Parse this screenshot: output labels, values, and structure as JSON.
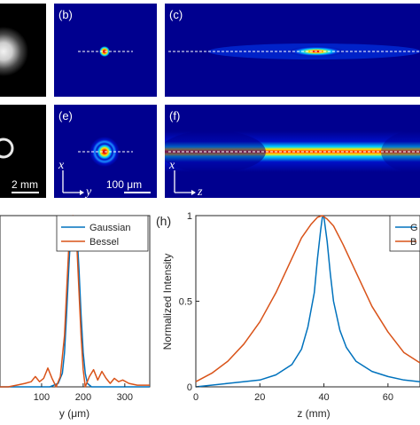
{
  "colors": {
    "blue": "#0072BD",
    "orange": "#D95319",
    "field": "#00008F",
    "dashed": "#ffffff",
    "hot": "#ff1a00",
    "warm": "#ffe600",
    "cool": "#00d4ff"
  },
  "panels": {
    "b": {
      "label": "(b)"
    },
    "c": {
      "label": "(c)"
    },
    "e": {
      "label": "(e)",
      "axis_x": "x",
      "axis_y": "y",
      "scale_text": "100 μm"
    },
    "f": {
      "label": "(f)",
      "axis_x": "x",
      "axis_z": "z"
    },
    "left": {
      "scale_text": "2 mm"
    },
    "h": {
      "label": "(h)"
    }
  },
  "chart_data": [
    {
      "type": "line",
      "panel": "g",
      "xlabel": "y (μm)",
      "ylabel": "",
      "xlim": [
        0,
        360
      ],
      "ylim": [
        0,
        1
      ],
      "x_ticks": [
        100,
        200,
        300
      ],
      "y_ticks": [],
      "legend": [
        "Gaussian",
        "Bessel"
      ],
      "legend_position": "top-right",
      "series": [
        {
          "name": "Gaussian",
          "color": "#0072BD",
          "x": [
            0,
            120,
            140,
            150,
            155,
            160,
            165,
            170,
            175,
            180,
            185,
            190,
            195,
            200,
            205,
            210,
            220,
            240,
            360
          ],
          "y": [
            0.0,
            0.0,
            0.02,
            0.08,
            0.2,
            0.42,
            0.68,
            0.9,
            0.99,
            0.99,
            0.9,
            0.68,
            0.42,
            0.2,
            0.08,
            0.02,
            0.0,
            0.0,
            0.0
          ]
        },
        {
          "name": "Bessel",
          "color": "#D95319",
          "x": [
            0,
            20,
            40,
            60,
            75,
            85,
            95,
            105,
            115,
            125,
            135,
            145,
            155,
            160,
            165,
            170,
            175,
            180,
            185,
            190,
            195,
            200,
            205,
            215,
            225,
            235,
            245,
            255,
            265,
            275,
            285,
            295,
            310,
            330,
            360
          ],
          "y": [
            0.0,
            0.0,
            0.01,
            0.02,
            0.03,
            0.06,
            0.03,
            0.05,
            0.11,
            0.05,
            0.0,
            0.06,
            0.3,
            0.55,
            0.8,
            0.95,
            1.0,
            0.97,
            0.82,
            0.55,
            0.3,
            0.1,
            0.0,
            0.06,
            0.1,
            0.04,
            0.09,
            0.05,
            0.02,
            0.05,
            0.03,
            0.04,
            0.02,
            0.01,
            0.01
          ]
        }
      ]
    },
    {
      "type": "line",
      "panel": "h",
      "xlabel": "z (mm)",
      "ylabel": "Normalized Intensity",
      "xlim": [
        0,
        70
      ],
      "ylim": [
        0,
        1
      ],
      "x_ticks": [
        0,
        20,
        40,
        60
      ],
      "y_ticks": [
        0,
        0.5,
        1
      ],
      "legend": [
        "G",
        "B"
      ],
      "legend_position": "top-right",
      "series": [
        {
          "name": "G",
          "color": "#0072BD",
          "x": [
            0,
            10,
            20,
            25,
            30,
            33,
            35,
            37,
            38,
            39,
            39.5,
            40,
            41,
            42,
            43,
            45,
            47,
            50,
            55,
            60,
            65,
            70
          ],
          "y": [
            0.0,
            0.02,
            0.04,
            0.07,
            0.13,
            0.22,
            0.35,
            0.55,
            0.75,
            0.92,
            0.99,
            0.99,
            0.85,
            0.66,
            0.5,
            0.33,
            0.23,
            0.15,
            0.09,
            0.06,
            0.04,
            0.03
          ]
        },
        {
          "name": "B",
          "color": "#D95319",
          "x": [
            0,
            5,
            10,
            15,
            20,
            25,
            30,
            33,
            36,
            38,
            39.5,
            41,
            43,
            46,
            50,
            55,
            60,
            65,
            70
          ],
          "y": [
            0.03,
            0.08,
            0.15,
            0.25,
            0.38,
            0.55,
            0.75,
            0.87,
            0.95,
            0.99,
            1.0,
            0.98,
            0.94,
            0.83,
            0.67,
            0.47,
            0.32,
            0.2,
            0.14
          ]
        }
      ]
    }
  ]
}
